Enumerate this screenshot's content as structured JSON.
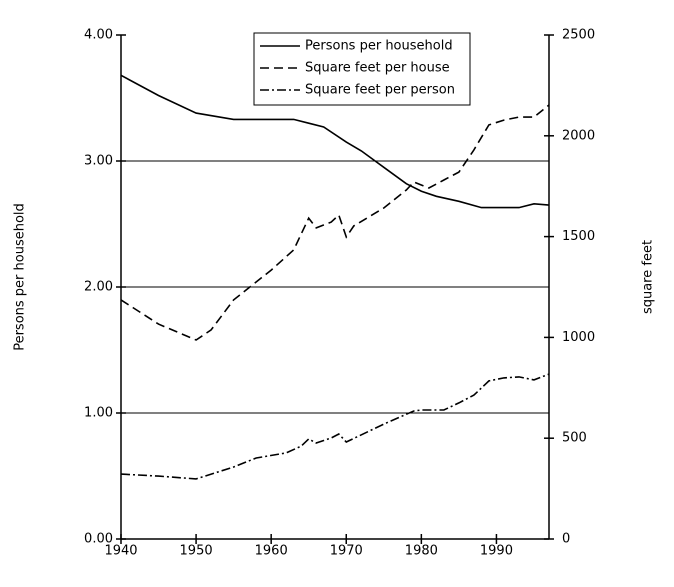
{
  "chart_data": {
    "type": "line",
    "y_label": "Persons per household",
    "y2_label": "square feet",
    "xlim": [
      1940,
      1997
    ],
    "xticks": [
      1940,
      1950,
      1960,
      1970,
      1980,
      1990
    ],
    "ylim": [
      0,
      4
    ],
    "yticks": [
      {
        "value": 0,
        "label": "0.00"
      },
      {
        "value": 1,
        "label": "1.00"
      },
      {
        "value": 2,
        "label": "2.00"
      },
      {
        "value": 3,
        "label": "3.00"
      },
      {
        "value": 4,
        "label": "4.00"
      }
    ],
    "y2lim": [
      0,
      2500
    ],
    "y2ticks": [
      0,
      500,
      1000,
      1500,
      2000,
      2500
    ],
    "grid": true,
    "legend": "top",
    "series": [
      {
        "name": "Persons per household",
        "color": "#000000",
        "dash": "solid",
        "x": [
          1940,
          1945,
          1950,
          1955,
          1960,
          1963,
          1965,
          1967,
          1970,
          1972,
          1975,
          1978,
          1980,
          1982,
          1985,
          1988,
          1990,
          1993,
          1995,
          1997
        ],
        "values": [
          3.68,
          3.52,
          3.38,
          3.33,
          3.33,
          3.33,
          3.3,
          3.27,
          3.15,
          3.08,
          2.95,
          2.82,
          2.76,
          2.72,
          2.68,
          2.63,
          2.63,
          2.63,
          2.66,
          2.65
        ]
      },
      {
        "name": "Square feet per house",
        "color": "#000000",
        "dash": "dashed",
        "axis": "y2",
        "x": [
          1940,
          1945,
          1950,
          1952,
          1955,
          1957,
          1960,
          1963,
          1965,
          1966,
          1968,
          1969,
          1970,
          1971,
          1975,
          1978,
          1979,
          1981,
          1983,
          1985,
          1987,
          1989,
          1991,
          1993,
          1995,
          1997
        ],
        "values": [
          1186,
          1066,
          987,
          1037,
          1186,
          1245,
          1334,
          1434,
          1592,
          1543,
          1572,
          1607,
          1498,
          1553,
          1642,
          1731,
          1771,
          1741,
          1781,
          1820,
          1930,
          2054,
          2078,
          2093,
          2093,
          2153
        ]
      },
      {
        "name": "Square feet per person",
        "color": "#000000",
        "dash": "dashdot",
        "axis": "y2",
        "x": [
          1940,
          1945,
          1950,
          1955,
          1958,
          1962,
          1964,
          1965,
          1966,
          1968,
          1969,
          1970,
          1975,
          1979,
          1980,
          1983,
          1985,
          1987,
          1989,
          1991,
          1993,
          1995,
          1997
        ],
        "values": [
          322,
          312,
          298,
          357,
          402,
          427,
          461,
          496,
          476,
          501,
          521,
          481,
          570,
          635,
          640,
          640,
          675,
          714,
          784,
          799,
          804,
          789,
          818
        ]
      }
    ]
  }
}
